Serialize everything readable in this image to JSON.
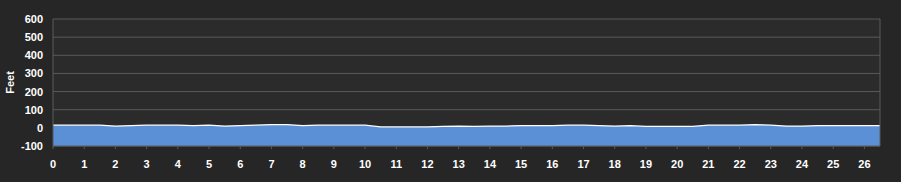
{
  "chart_data": {
    "type": "area",
    "y_label": "Feet",
    "color": "#5b8fd6",
    "x": [
      0,
      0.5,
      1,
      1.5,
      2,
      2.5,
      3,
      3.5,
      4,
      4.5,
      5,
      5.5,
      6,
      6.5,
      7,
      7.5,
      8,
      8.5,
      9,
      9.5,
      10,
      10.5,
      11,
      11.5,
      12,
      12.5,
      13,
      13.5,
      14,
      14.5,
      15,
      15.5,
      16,
      16.5,
      17,
      17.5,
      18,
      18.5,
      19,
      19.5,
      20,
      20.5,
      21,
      21.5,
      22,
      22.5,
      23,
      23.5,
      24,
      24.5,
      25,
      25.5,
      26,
      26.5
    ],
    "values": [
      15,
      15,
      15,
      15,
      10,
      12,
      15,
      15,
      15,
      12,
      15,
      10,
      12,
      15,
      18,
      18,
      12,
      15,
      15,
      15,
      15,
      5,
      5,
      5,
      5,
      8,
      10,
      8,
      10,
      10,
      12,
      12,
      12,
      15,
      15,
      12,
      10,
      12,
      8,
      8,
      8,
      8,
      15,
      15,
      15,
      18,
      15,
      10,
      10,
      12,
      12,
      12,
      12,
      12
    ],
    "xlim": [
      0,
      26.5
    ],
    "ylim": [
      -100,
      600
    ],
    "xticks": [
      0,
      1,
      2,
      3,
      4,
      5,
      6,
      7,
      8,
      9,
      10,
      11,
      12,
      13,
      14,
      15,
      16,
      17,
      18,
      19,
      20,
      21,
      22,
      23,
      24,
      25,
      26
    ],
    "yticks": [
      -100,
      0,
      100,
      200,
      300,
      400,
      500,
      600
    ],
    "grid": true
  }
}
